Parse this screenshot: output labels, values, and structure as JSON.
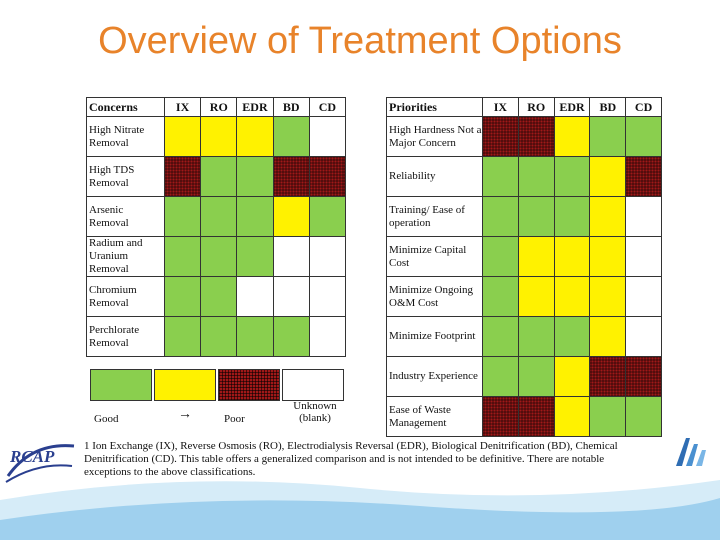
{
  "title": "Overview of Treatment Options",
  "concerns_table": {
    "header": [
      "Concerns",
      "IX",
      "RO",
      "EDR",
      "BD",
      "CD"
    ],
    "rows": [
      {
        "label": "High Nitrate Removal",
        "cells": [
          "fair",
          "fair",
          "fair",
          "good",
          "unk"
        ]
      },
      {
        "label": "High TDS Removal",
        "cells": [
          "poor",
          "good",
          "good",
          "poor",
          "poor"
        ]
      },
      {
        "label": "Arsenic Removal",
        "cells": [
          "good",
          "good",
          "good",
          "fair",
          "good"
        ]
      },
      {
        "label": "Radium and Uranium Removal",
        "cells": [
          "good",
          "good",
          "good",
          "unk",
          "unk"
        ]
      },
      {
        "label": "Chromium Removal",
        "cells": [
          "good",
          "good",
          "unk",
          "unk",
          "unk"
        ]
      },
      {
        "label": "Perchlorate Removal",
        "cells": [
          "good",
          "good",
          "good",
          "good",
          "unk"
        ]
      }
    ]
  },
  "priorities_table": {
    "header": [
      "Priorities",
      "IX",
      "RO",
      "EDR",
      "BD",
      "CD"
    ],
    "rows": [
      {
        "label": "High Hardness Not a Major Concern",
        "cells": [
          "poor",
          "poor",
          "fair",
          "good",
          "good"
        ]
      },
      {
        "label": "Reliability",
        "cells": [
          "good",
          "good",
          "good",
          "fair",
          "poor"
        ]
      },
      {
        "label": "Training/ Ease of operation",
        "cells": [
          "good",
          "good",
          "good",
          "fair",
          "unk"
        ]
      },
      {
        "label": "Minimize Capital Cost",
        "cells": [
          "good",
          "fair",
          "fair",
          "fair",
          "unk"
        ]
      },
      {
        "label": "Minimize Ongoing O&M Cost",
        "cells": [
          "good",
          "fair",
          "fair",
          "fair",
          "unk"
        ]
      },
      {
        "label": "Minimize Footprint",
        "cells": [
          "good",
          "good",
          "good",
          "fair",
          "unk"
        ]
      },
      {
        "label": "Industry Experience",
        "cells": [
          "good",
          "good",
          "fair",
          "poor",
          "poor"
        ]
      },
      {
        "label": "Ease of Waste Management",
        "cells": [
          "poor",
          "poor",
          "fair",
          "good",
          "good"
        ]
      }
    ]
  },
  "legend": {
    "good_label": "Good",
    "arrow": "→",
    "poor_label": "Poor",
    "unknown_label": "Unknown (blank)"
  },
  "footnote": {
    "marker": "1",
    "text": "Ion Exchange (IX), Reverse Osmosis (RO), Electrodialysis Reversal (EDR), Biological Denitrification (BD), Chemical Denitrification (CD). This table offers a generalized comparison and is not intended to be definitive. There are notable exceptions to the above classifications."
  },
  "branding": {
    "rcap_text": "RCAP",
    "logo_icon": "water-drops-logo-icon"
  },
  "colors": {
    "title": "#E8832A",
    "good": "#8ACF4E",
    "fair": "#FFF200",
    "poor": "#a01818",
    "band": "#4aa3d8"
  }
}
